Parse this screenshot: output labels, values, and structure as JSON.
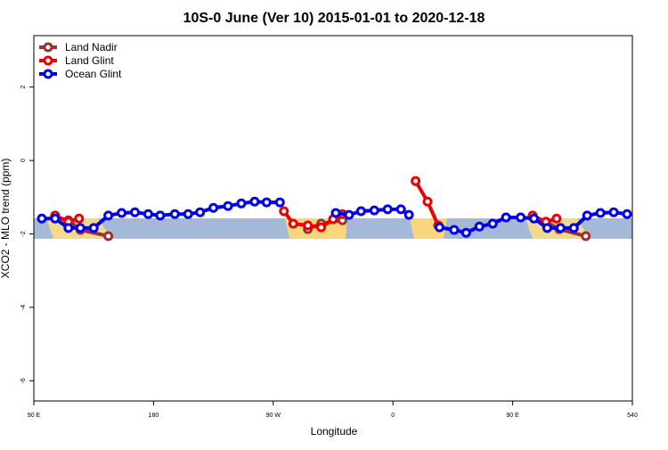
{
  "chart_data": {
    "type": "line",
    "title": "10S-0 June (Ver 10)   2015-01-01 to 2020-12-18",
    "x_label": "Longitude",
    "y_label": "XCO2 - MLO trend (ppm)",
    "xlim": [
      90,
      540
    ],
    "xticks": [
      {
        "value": 90,
        "label": "90 E"
      },
      180,
      {
        "value": 270,
        "label": "90 W"
      },
      {
        "value": 360,
        "label": "0"
      },
      {
        "value": 450,
        "label": "90 E"
      },
      540
    ],
    "ylim": [
      -6.55,
      3.4
    ],
    "yticks": [
      2,
      0,
      -2,
      -4,
      -6
    ],
    "legend": "top-left",
    "series": [
      {
        "name": "Land Nadir",
        "color": "#993333",
        "x": [
          106,
          116,
          125,
          146,
          null,
          296,
          306,
          322,
          null,
          465,
          475,
          485,
          505
        ],
        "values": [
          -1.53,
          -1.63,
          -1.89,
          -2.06,
          null,
          -1.87,
          -1.72,
          -1.63,
          null,
          -1.53,
          -1.67,
          -1.87,
          -2.06
        ]
      },
      {
        "name": "Land Glint",
        "color": "#ee0000",
        "x": [
          106,
          116,
          124,
          null,
          278,
          285,
          296,
          306,
          315,
          322,
          null,
          377,
          386,
          394,
          null,
          465,
          475,
          483
        ],
        "values": [
          -1.5,
          -1.67,
          -1.58,
          null,
          -1.38,
          -1.72,
          -1.77,
          -1.82,
          -1.6,
          -1.46,
          null,
          -0.56,
          -1.12,
          -1.77,
          null,
          -1.5,
          -1.67,
          -1.58
        ]
      },
      {
        "name": "Ocean Glint",
        "color": "#0000ee",
        "x": [
          96,
          106,
          116,
          125,
          135,
          146,
          156,
          166,
          176,
          185,
          196,
          206,
          215,
          225,
          236,
          246,
          256,
          265,
          275,
          null,
          317,
          327,
          336,
          346,
          356,
          366,
          372,
          null,
          395,
          406,
          415,
          425,
          435,
          445,
          456,
          466,
          476,
          486,
          496,
          506,
          516,
          526,
          536
        ],
        "values": [
          -1.58,
          -1.58,
          -1.84,
          -1.84,
          -1.84,
          -1.5,
          -1.43,
          -1.41,
          -1.46,
          -1.5,
          -1.46,
          -1.46,
          -1.41,
          -1.29,
          -1.24,
          -1.17,
          -1.12,
          -1.14,
          -1.14,
          null,
          -1.43,
          -1.48,
          -1.38,
          -1.36,
          -1.33,
          -1.33,
          -1.48,
          null,
          -1.82,
          -1.89,
          -1.97,
          -1.8,
          -1.72,
          -1.55,
          -1.55,
          -1.58,
          -1.84,
          -1.84,
          -1.84,
          -1.5,
          -1.43,
          -1.41,
          -1.46
        ]
      }
    ]
  }
}
